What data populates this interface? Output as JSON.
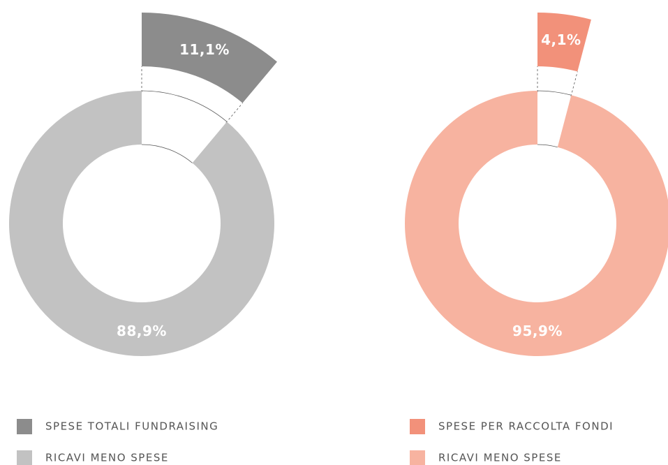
{
  "chart_data": [
    {
      "type": "donut",
      "categories": [
        "SPESE TOTALI FUNDRAISING",
        "RICAVI MENO SPESE"
      ],
      "values": [
        11.1,
        88.9
      ],
      "value_labels": [
        "11,1%",
        "88,9%"
      ],
      "colors": [
        "#8c8c8c",
        "#c2c2c2"
      ]
    },
    {
      "type": "donut",
      "categories": [
        "SPESE PER RACCOLTA FONDI",
        "RICAVI MENO SPESE"
      ],
      "values": [
        4.1,
        95.9
      ],
      "value_labels": [
        "4,1%",
        "95,9%"
      ],
      "colors": [
        "#f2917a",
        "#f7b3a0"
      ]
    }
  ]
}
